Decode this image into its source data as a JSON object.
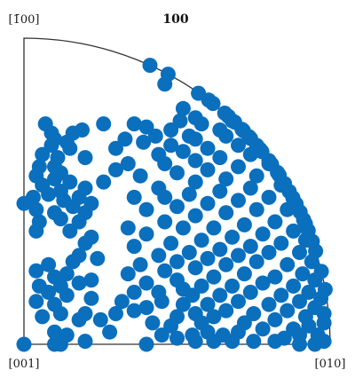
{
  "chart_data": {
    "type": "scatter",
    "title": "100",
    "corner_labels": {
      "top": "[1̄00]",
      "bottom_left": "[001]",
      "bottom_right": "[010]"
    },
    "colors": {
      "marker": "#0a6fbd",
      "outline": "#333333"
    },
    "xlim": [
      0,
      1
    ],
    "ylim": [
      0,
      1
    ],
    "points": [
      [
        0.0,
        0.0
      ],
      [
        0.4,
        0.0
      ],
      [
        0.1,
        0.0
      ],
      [
        0.12,
        0.0
      ],
      [
        0.9,
        0.0
      ],
      [
        0.95,
        0.0
      ],
      [
        0.98,
        0.01
      ],
      [
        0.82,
        0.01
      ],
      [
        0.75,
        0.01
      ],
      [
        0.68,
        0.01
      ],
      [
        0.62,
        0.01
      ],
      [
        0.56,
        0.01
      ],
      [
        0.85,
        0.02
      ],
      [
        0.9,
        0.03
      ],
      [
        0.96,
        0.03
      ],
      [
        0.2,
        0.01
      ],
      [
        0.45,
        0.03
      ],
      [
        0.5,
        0.02
      ],
      [
        0.55,
        0.03
      ],
      [
        0.6,
        0.04
      ],
      [
        0.65,
        0.03
      ],
      [
        0.7,
        0.04
      ],
      [
        0.78,
        0.05
      ],
      [
        0.88,
        0.05
      ],
      [
        0.93,
        0.06
      ],
      [
        0.98,
        0.07
      ],
      [
        0.1,
        0.04
      ],
      [
        0.14,
        0.03
      ],
      [
        0.28,
        0.04
      ],
      [
        0.48,
        0.06
      ],
      [
        0.58,
        0.07
      ],
      [
        0.72,
        0.07
      ],
      [
        0.82,
        0.08
      ],
      [
        0.92,
        0.09
      ],
      [
        0.98,
        0.1
      ],
      [
        0.18,
        0.08
      ],
      [
        0.2,
        0.1
      ],
      [
        0.25,
        0.08
      ],
      [
        0.42,
        0.07
      ],
      [
        0.5,
        0.09
      ],
      [
        0.56,
        0.1
      ],
      [
        0.62,
        0.09
      ],
      [
        0.66,
        0.11
      ],
      [
        0.75,
        0.1
      ],
      [
        0.86,
        0.11
      ],
      [
        0.95,
        0.12
      ],
      [
        0.06,
        0.09
      ],
      [
        0.12,
        0.1
      ],
      [
        0.3,
        0.1
      ],
      [
        0.36,
        0.11
      ],
      [
        0.52,
        0.13
      ],
      [
        0.6,
        0.13
      ],
      [
        0.7,
        0.14
      ],
      [
        0.8,
        0.13
      ],
      [
        0.9,
        0.14
      ],
      [
        0.97,
        0.15
      ],
      [
        0.04,
        0.14
      ],
      [
        0.1,
        0.13
      ],
      [
        0.14,
        0.16
      ],
      [
        0.22,
        0.15
      ],
      [
        0.32,
        0.14
      ],
      [
        0.4,
        0.12
      ],
      [
        0.45,
        0.14
      ],
      [
        0.55,
        0.16
      ],
      [
        0.64,
        0.16
      ],
      [
        0.74,
        0.17
      ],
      [
        0.84,
        0.16
      ],
      [
        0.93,
        0.17
      ],
      [
        0.99,
        0.18
      ],
      [
        0.08,
        0.17
      ],
      [
        0.12,
        0.19
      ],
      [
        0.36,
        0.17
      ],
      [
        0.44,
        0.17
      ],
      [
        0.52,
        0.18
      ],
      [
        0.58,
        0.19
      ],
      [
        0.68,
        0.19
      ],
      [
        0.78,
        0.2
      ],
      [
        0.88,
        0.19
      ],
      [
        0.95,
        0.21
      ],
      [
        0.05,
        0.19
      ],
      [
        0.18,
        0.2
      ],
      [
        0.4,
        0.2
      ],
      [
        0.5,
        0.21
      ],
      [
        0.62,
        0.22
      ],
      [
        0.72,
        0.23
      ],
      [
        0.82,
        0.22
      ],
      [
        0.91,
        0.23
      ],
      [
        0.98,
        0.24
      ],
      [
        0.04,
        0.24
      ],
      [
        0.1,
        0.22
      ],
      [
        0.14,
        0.23
      ],
      [
        0.22,
        0.21
      ],
      [
        0.34,
        0.23
      ],
      [
        0.46,
        0.24
      ],
      [
        0.56,
        0.25
      ],
      [
        0.66,
        0.26
      ],
      [
        0.76,
        0.27
      ],
      [
        0.86,
        0.26
      ],
      [
        0.94,
        0.27
      ],
      [
        0.08,
        0.26
      ],
      [
        0.16,
        0.27
      ],
      [
        0.38,
        0.26
      ],
      [
        0.5,
        0.27
      ],
      [
        0.6,
        0.28
      ],
      [
        0.7,
        0.29
      ],
      [
        0.8,
        0.3
      ],
      [
        0.9,
        0.3
      ],
      [
        0.97,
        0.31
      ],
      [
        0.18,
        0.29
      ],
      [
        0.24,
        0.28
      ],
      [
        0.44,
        0.29
      ],
      [
        0.54,
        0.3
      ],
      [
        0.64,
        0.31
      ],
      [
        0.74,
        0.32
      ],
      [
        0.84,
        0.33
      ],
      [
        0.92,
        0.34
      ],
      [
        0.98,
        0.35
      ],
      [
        0.2,
        0.33
      ],
      [
        0.22,
        0.35
      ],
      [
        0.36,
        0.32
      ],
      [
        0.48,
        0.33
      ],
      [
        0.58,
        0.34
      ],
      [
        0.68,
        0.35
      ],
      [
        0.78,
        0.36
      ],
      [
        0.88,
        0.37
      ],
      [
        0.95,
        0.38
      ],
      [
        0.04,
        0.37
      ],
      [
        0.15,
        0.37
      ],
      [
        0.18,
        0.4
      ],
      [
        0.4,
        0.36
      ],
      [
        0.52,
        0.38
      ],
      [
        0.62,
        0.38
      ],
      [
        0.72,
        0.39
      ],
      [
        0.82,
        0.4
      ],
      [
        0.92,
        0.41
      ],
      [
        0.98,
        0.42
      ],
      [
        0.05,
        0.4
      ],
      [
        0.12,
        0.41
      ],
      [
        0.2,
        0.43
      ],
      [
        0.34,
        0.38
      ],
      [
        0.46,
        0.4
      ],
      [
        0.56,
        0.42
      ],
      [
        0.66,
        0.43
      ],
      [
        0.76,
        0.44
      ],
      [
        0.86,
        0.44
      ],
      [
        0.94,
        0.45
      ],
      [
        0.1,
        0.43
      ],
      [
        0.16,
        0.45
      ],
      [
        0.4,
        0.44
      ],
      [
        0.5,
        0.45
      ],
      [
        0.6,
        0.46
      ],
      [
        0.7,
        0.47
      ],
      [
        0.8,
        0.48
      ],
      [
        0.9,
        0.49
      ],
      [
        0.97,
        0.5
      ],
      [
        0.04,
        0.44
      ],
      [
        0.13,
        0.47
      ],
      [
        0.18,
        0.48
      ],
      [
        0.22,
        0.46
      ],
      [
        0.46,
        0.48
      ],
      [
        0.54,
        0.49
      ],
      [
        0.64,
        0.5
      ],
      [
        0.74,
        0.51
      ],
      [
        0.84,
        0.52
      ],
      [
        0.92,
        0.53
      ],
      [
        0.0,
        0.46
      ],
      [
        0.03,
        0.48
      ],
      [
        0.08,
        0.49
      ],
      [
        0.12,
        0.5
      ],
      [
        0.2,
        0.51
      ],
      [
        0.36,
        0.48
      ],
      [
        0.44,
        0.51
      ],
      [
        0.56,
        0.53
      ],
      [
        0.66,
        0.54
      ],
      [
        0.76,
        0.55
      ],
      [
        0.86,
        0.57
      ],
      [
        0.94,
        0.58
      ],
      [
        0.06,
        0.52
      ],
      [
        0.1,
        0.54
      ],
      [
        0.15,
        0.53
      ],
      [
        0.26,
        0.53
      ],
      [
        0.38,
        0.55
      ],
      [
        0.5,
        0.56
      ],
      [
        0.6,
        0.57
      ],
      [
        0.7,
        0.58
      ],
      [
        0.8,
        0.59
      ],
      [
        0.9,
        0.61
      ],
      [
        0.04,
        0.55
      ],
      [
        0.12,
        0.56
      ],
      [
        0.3,
        0.57
      ],
      [
        0.34,
        0.59
      ],
      [
        0.46,
        0.59
      ],
      [
        0.56,
        0.6
      ],
      [
        0.64,
        0.61
      ],
      [
        0.74,
        0.62
      ],
      [
        0.84,
        0.63
      ],
      [
        0.88,
        0.64
      ],
      [
        0.05,
        0.58
      ],
      [
        0.1,
        0.58
      ],
      [
        0.44,
        0.62
      ],
      [
        0.52,
        0.63
      ],
      [
        0.6,
        0.64
      ],
      [
        0.7,
        0.65
      ],
      [
        0.8,
        0.66
      ],
      [
        0.84,
        0.68
      ],
      [
        0.06,
        0.62
      ],
      [
        0.11,
        0.61
      ],
      [
        0.2,
        0.61
      ],
      [
        0.48,
        0.65
      ],
      [
        0.56,
        0.67
      ],
      [
        0.66,
        0.68
      ],
      [
        0.76,
        0.69
      ],
      [
        0.82,
        0.7
      ],
      [
        0.09,
        0.65
      ],
      [
        0.15,
        0.64
      ],
      [
        0.3,
        0.64
      ],
      [
        0.54,
        0.68
      ],
      [
        0.64,
        0.7
      ],
      [
        0.72,
        0.71
      ],
      [
        0.78,
        0.72
      ],
      [
        0.1,
        0.67
      ],
      [
        0.14,
        0.66
      ],
      [
        0.33,
        0.67
      ],
      [
        0.48,
        0.7
      ],
      [
        0.58,
        0.72
      ],
      [
        0.68,
        0.73
      ],
      [
        0.76,
        0.74
      ],
      [
        0.07,
        0.72
      ],
      [
        0.19,
        0.7
      ],
      [
        0.4,
        0.71
      ],
      [
        0.56,
        0.74
      ],
      [
        0.66,
        0.76
      ],
      [
        0.73,
        0.77
      ],
      [
        0.52,
        0.77
      ],
      [
        0.62,
        0.79
      ],
      [
        0.7,
        0.78
      ],
      [
        0.57,
        0.82
      ],
      [
        0.62,
        0.82
      ],
      [
        0.46,
        0.85
      ],
      [
        0.48,
        0.9
      ],
      [
        0.42,
        0.93
      ],
      [
        0.36,
        0.72
      ],
      [
        0.16,
        0.69
      ],
      [
        0.09,
        0.69
      ],
      [
        0.26,
        0.72
      ],
      [
        0.39,
        0.66
      ],
      [
        0.43,
        0.68
      ],
      [
        0.51,
        0.73
      ]
    ]
  }
}
